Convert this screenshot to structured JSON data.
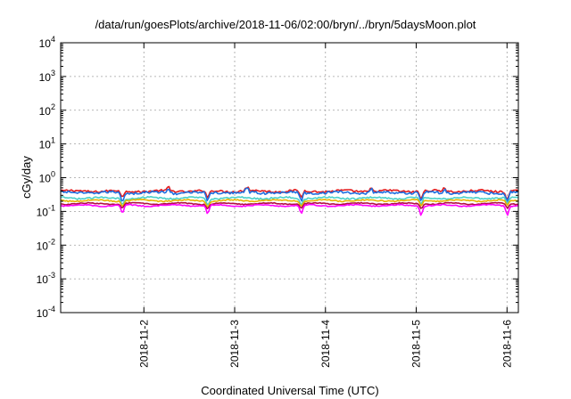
{
  "chart_data": {
    "type": "line",
    "title": "/data/run/goesPlots/archive/2018-11-06/02:00/bryn/../bryn/5daysMoon.plot",
    "xlabel": "Coordinated Universal Time (UTC)",
    "ylabel": "cGy/day",
    "yscale": "log",
    "ylim": [
      0.0001,
      10000
    ],
    "xlim_days": [
      "2018-11-01 02:00",
      "2018-11-06 03:00"
    ],
    "y_ticks": [
      {
        "exp": "-4",
        "value": 0.0001
      },
      {
        "exp": "-3",
        "value": 0.001
      },
      {
        "exp": "-2",
        "value": 0.01
      },
      {
        "exp": "-1",
        "value": 0.1
      },
      {
        "exp": "0",
        "value": 1
      },
      {
        "exp": "1",
        "value": 10
      },
      {
        "exp": "2",
        "value": 100
      },
      {
        "exp": "3",
        "value": 1000
      },
      {
        "exp": "4",
        "value": 10000
      }
    ],
    "y_tick_base": "10",
    "x_ticks": [
      "2018-11-2",
      "2018-11-3",
      "2018-11-4",
      "2018-11-5",
      "2018-11-6"
    ],
    "grid": true,
    "series": [
      {
        "color": "#e41a1c",
        "level": 0.4,
        "noise": 0.07,
        "dip": 0.55
      },
      {
        "color": "#1f6fe0",
        "level": 0.36,
        "noise": 0.08,
        "dip": 0.5
      },
      {
        "color": "#4bd0c8",
        "level": 0.25,
        "noise": 0.05,
        "dip": 0.6
      },
      {
        "color": "#e6b400",
        "level": 0.21,
        "noise": 0.04,
        "dip": 0.65
      },
      {
        "color": "#b01040",
        "level": 0.17,
        "noise": 0.03,
        "dip": 0.7
      },
      {
        "color": "#ff00ff",
        "level": 0.15,
        "noise": 0.03,
        "dip": 0.5
      }
    ],
    "dips_days": [
      0.68,
      1.62,
      2.65,
      3.97,
      4.92
    ],
    "spikes_days": [
      1.18,
      2.05,
      3.42,
      4.23
    ]
  }
}
